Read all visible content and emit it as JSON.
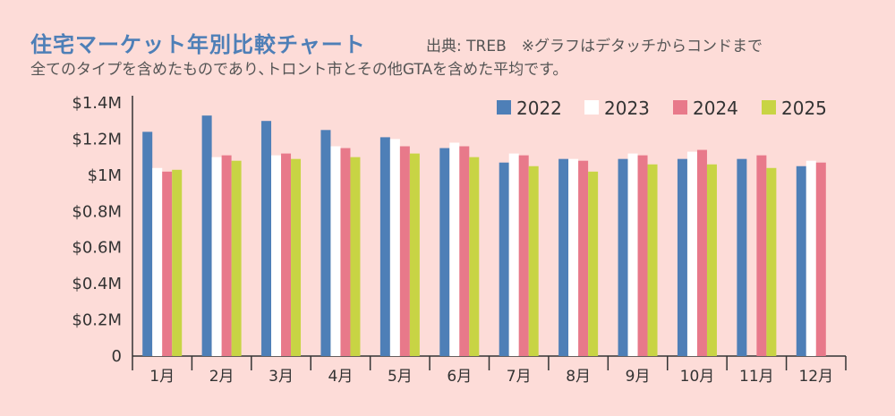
{
  "header": {
    "title": "住宅マーケット年別比較チャート",
    "source": "出典: TREB　※グラフはデタッチからコンドまで",
    "note": "全てのタイプを含めたものであり､トロント市とその他GTAを含めた平均です。"
  },
  "chart_data": {
    "type": "bar",
    "title": "住宅マーケット年別比較チャート",
    "categories": [
      "1月",
      "2月",
      "3月",
      "4月",
      "5月",
      "6月",
      "7月",
      "8月",
      "9月",
      "10月",
      "11月",
      "12月"
    ],
    "y_ticks": [
      "0",
      "$0.2M",
      "$0.4M",
      "$0.6M",
      "$0.8M",
      "$1M",
      "$1.2M",
      "$1.4M"
    ],
    "ylim": [
      0,
      1.4
    ],
    "unit": "M",
    "legend_position": "top-right",
    "series": [
      {
        "name": "2022",
        "color": "#4e7fb7",
        "values": [
          1.24,
          1.33,
          1.3,
          1.25,
          1.21,
          1.15,
          1.07,
          1.09,
          1.09,
          1.09,
          1.09,
          1.05
        ]
      },
      {
        "name": "2023",
        "color": "#ffffff",
        "values": [
          1.04,
          1.1,
          1.11,
          1.16,
          1.2,
          1.18,
          1.12,
          1.09,
          1.12,
          1.13,
          null,
          1.08
        ]
      },
      {
        "name": "2024",
        "color": "#e8798a",
        "values": [
          1.02,
          1.11,
          1.12,
          1.15,
          1.16,
          1.16,
          1.11,
          1.08,
          1.11,
          1.14,
          1.11,
          1.07
        ]
      },
      {
        "name": "2025",
        "color": "#c8d444",
        "values": [
          1.03,
          1.08,
          1.09,
          1.1,
          1.12,
          1.1,
          1.05,
          1.02,
          1.06,
          1.06,
          1.04,
          null
        ]
      }
    ]
  }
}
